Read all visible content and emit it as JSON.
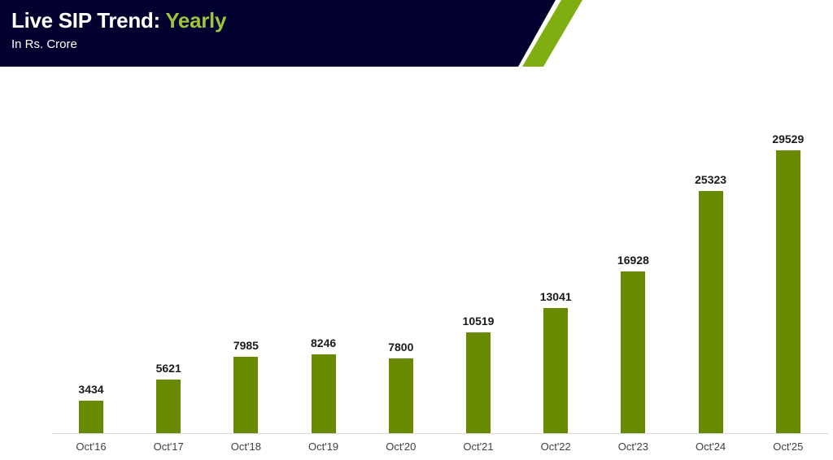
{
  "header": {
    "title_main": "Live SIP Trend: ",
    "title_accent": "Yearly",
    "subtitle": "In Rs. Crore",
    "colors": {
      "background": "#02002e",
      "accent": "#9bc53d",
      "stripe": "#7fae10"
    }
  },
  "chart_data": {
    "type": "bar",
    "title": "Live SIP Trend: Yearly",
    "subtitle": "In Rs. Crore",
    "xlabel": "",
    "ylabel": "",
    "categories": [
      "Oct'16",
      "Oct'17",
      "Oct'18",
      "Oct'19",
      "Oct'20",
      "Oct'21",
      "Oct'22",
      "Oct'23",
      "Oct'24",
      "Oct'25"
    ],
    "values": [
      3434,
      5621,
      7985,
      8246,
      7800,
      10519,
      13041,
      16928,
      25323,
      29529
    ],
    "series": [
      {
        "name": "Live SIP (Rs. Crore)",
        "values": [
          3434,
          5621,
          7985,
          8246,
          7800,
          10519,
          13041,
          16928,
          25323,
          29529
        ],
        "color": "#688a00"
      }
    ],
    "ylim": [
      0,
      29529
    ],
    "grid": false,
    "legend": "none",
    "data_labels": true
  },
  "labels": {
    "values": [
      "3434",
      "5621",
      "7985",
      "8246",
      "7800",
      "10519",
      "13041",
      "16928",
      "25323",
      "29529"
    ],
    "categories": [
      "Oct'16",
      "Oct'17",
      "Oct'18",
      "Oct'19",
      "Oct'20",
      "Oct'21",
      "Oct'22",
      "Oct'23",
      "Oct'24",
      "Oct'25"
    ]
  }
}
